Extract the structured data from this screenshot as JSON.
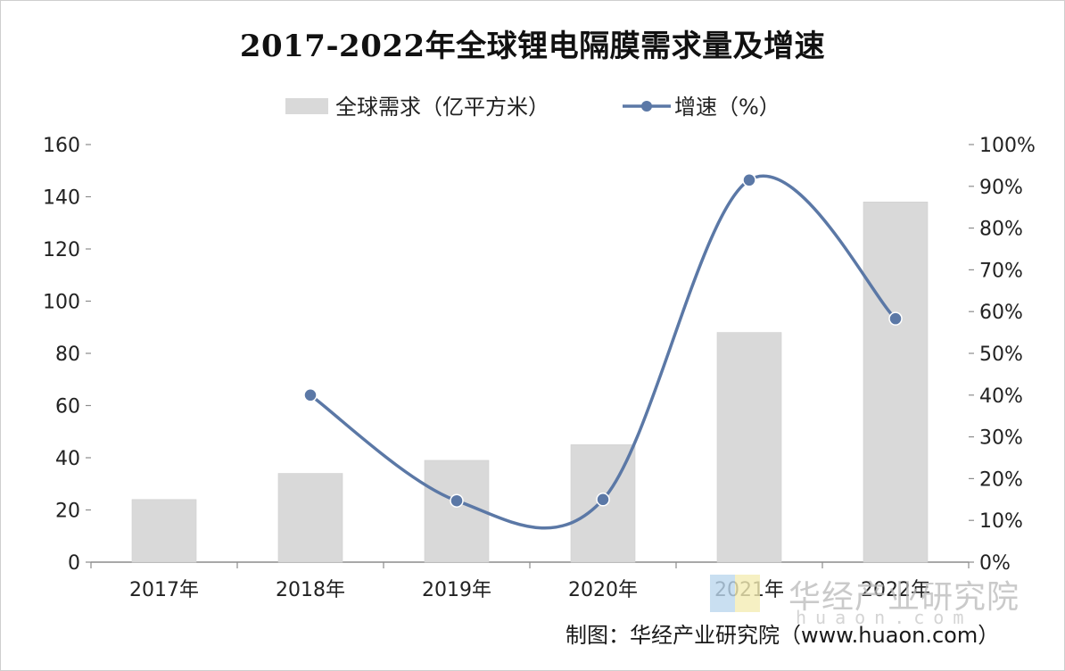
{
  "chart_data": {
    "type": "bar",
    "title": "2017-2022年全球锂电隔膜需求量及增速",
    "categories": [
      "2017年",
      "2018年",
      "2019年",
      "2020年",
      "2021年",
      "2022年"
    ],
    "series": [
      {
        "name": "全球需求（亿平方米）",
        "type": "bar",
        "axis": "left",
        "color": "#d9d9d9",
        "values": [
          24,
          34,
          39,
          45,
          88,
          138
        ]
      },
      {
        "name": "增速（%）",
        "type": "line",
        "axis": "right",
        "color": "#5b78a6",
        "values": [
          null,
          0.4,
          0.147,
          0.15,
          0.915,
          0.583
        ]
      }
    ],
    "ylim": [
      0,
      160
    ],
    "y_ticks": [
      0,
      20,
      40,
      60,
      80,
      100,
      120,
      140,
      160
    ],
    "y2lim": [
      0,
      1
    ],
    "y2_ticks": [
      "0%",
      "10%",
      "20%",
      "30%",
      "40%",
      "50%",
      "60%",
      "70%",
      "80%",
      "90%",
      "100%"
    ],
    "legend_position": "top",
    "grid": false
  },
  "source_text": "制图：华经产业研究院（www.huaon.com）",
  "watermark": {
    "name": "华经产业研究院",
    "site": "huaon.com"
  }
}
